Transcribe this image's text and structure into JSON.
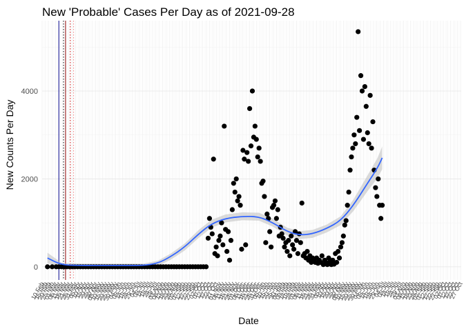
{
  "chart_data": {
    "type": "scatter",
    "title": "New 'Probable' Cases Per Day as of 2021-09-28",
    "xlabel": "Date",
    "ylabel": "New Counts Per Day",
    "x_range": [
      "2020-02-10",
      "2021-10-28"
    ],
    "ylim": [
      -300,
      5600
    ],
    "y_ticks": [
      0,
      2000,
      4000
    ],
    "x_tick_step_days": 5,
    "x_tick_label_angle": -60,
    "grid": true,
    "vlines": [
      {
        "date": "2020-03-06",
        "color": "#00008b",
        "style": "solid"
      },
      {
        "date": "2020-03-13",
        "color": "#000000",
        "style": "dotted"
      },
      {
        "date": "2020-03-16",
        "color": "#8b0000",
        "style": "solid"
      },
      {
        "date": "2020-03-23",
        "color": "#cd0000",
        "style": "dotted"
      },
      {
        "date": "2020-03-28",
        "color": "#f08080",
        "style": "dotted"
      }
    ],
    "point_color": "#000000",
    "smooth_color": "#3366ff",
    "ribbon_color": "#bebebe",
    "points": [
      [
        "2020-02-18",
        0
      ],
      [
        "2020-02-25",
        0
      ],
      [
        "2020-03-02",
        0
      ],
      [
        "2020-03-06",
        0
      ],
      [
        "2020-03-10",
        0
      ],
      [
        "2020-03-14",
        0
      ],
      [
        "2020-03-18",
        0
      ],
      [
        "2020-03-22",
        0
      ],
      [
        "2020-03-26",
        0
      ],
      [
        "2020-03-30",
        0
      ],
      [
        "2020-04-03",
        0
      ],
      [
        "2020-04-07",
        0
      ],
      [
        "2020-04-11",
        0
      ],
      [
        "2020-04-15",
        0
      ],
      [
        "2020-04-19",
        0
      ],
      [
        "2020-04-23",
        0
      ],
      [
        "2020-04-27",
        0
      ],
      [
        "2020-05-01",
        0
      ],
      [
        "2020-05-05",
        0
      ],
      [
        "2020-05-09",
        0
      ],
      [
        "2020-05-13",
        0
      ],
      [
        "2020-05-17",
        0
      ],
      [
        "2020-05-21",
        0
      ],
      [
        "2020-05-25",
        0
      ],
      [
        "2020-05-29",
        0
      ],
      [
        "2020-06-02",
        0
      ],
      [
        "2020-06-06",
        0
      ],
      [
        "2020-06-10",
        0
      ],
      [
        "2020-06-14",
        0
      ],
      [
        "2020-06-18",
        0
      ],
      [
        "2020-06-22",
        0
      ],
      [
        "2020-06-26",
        0
      ],
      [
        "2020-06-30",
        0
      ],
      [
        "2020-07-04",
        0
      ],
      [
        "2020-07-08",
        0
      ],
      [
        "2020-07-12",
        0
      ],
      [
        "2020-07-16",
        0
      ],
      [
        "2020-07-20",
        0
      ],
      [
        "2020-07-24",
        0
      ],
      [
        "2020-07-28",
        0
      ],
      [
        "2020-08-01",
        0
      ],
      [
        "2020-08-05",
        0
      ],
      [
        "2020-08-09",
        0
      ],
      [
        "2020-08-13",
        0
      ],
      [
        "2020-08-17",
        0
      ],
      [
        "2020-08-21",
        0
      ],
      [
        "2020-08-25",
        0
      ],
      [
        "2020-08-29",
        0
      ],
      [
        "2020-09-02",
        0
      ],
      [
        "2020-09-06",
        0
      ],
      [
        "2020-09-10",
        0
      ],
      [
        "2020-09-14",
        0
      ],
      [
        "2020-09-18",
        0
      ],
      [
        "2020-09-22",
        0
      ],
      [
        "2020-09-26",
        0
      ],
      [
        "2020-09-30",
        0
      ],
      [
        "2020-10-04",
        0
      ],
      [
        "2020-10-08",
        0
      ],
      [
        "2020-10-12",
        0
      ],
      [
        "2020-10-15",
        650
      ],
      [
        "2020-10-17",
        1100
      ],
      [
        "2020-10-19",
        900
      ],
      [
        "2020-10-21",
        750
      ],
      [
        "2020-10-23",
        2450
      ],
      [
        "2020-10-25",
        300
      ],
      [
        "2020-10-27",
        450
      ],
      [
        "2020-10-29",
        250
      ],
      [
        "2020-10-31",
        600
      ],
      [
        "2020-11-02",
        700
      ],
      [
        "2020-11-04",
        1000
      ],
      [
        "2020-11-06",
        500
      ],
      [
        "2020-11-08",
        3200
      ],
      [
        "2020-11-10",
        850
      ],
      [
        "2020-11-12",
        350
      ],
      [
        "2020-11-14",
        800
      ],
      [
        "2020-11-16",
        150
      ],
      [
        "2020-11-18",
        600
      ],
      [
        "2020-11-20",
        1300
      ],
      [
        "2020-11-22",
        1900
      ],
      [
        "2020-11-24",
        1700
      ],
      [
        "2020-11-26",
        2000
      ],
      [
        "2020-11-28",
        1500
      ],
      [
        "2020-11-30",
        1600
      ],
      [
        "2020-12-02",
        1400
      ],
      [
        "2020-12-04",
        400
      ],
      [
        "2020-12-06",
        2650
      ],
      [
        "2020-12-08",
        2450
      ],
      [
        "2020-12-10",
        500
      ],
      [
        "2020-12-12",
        2600
      ],
      [
        "2020-12-14",
        2400
      ],
      [
        "2020-12-16",
        3600
      ],
      [
        "2020-12-18",
        2750
      ],
      [
        "2020-12-20",
        4000
      ],
      [
        "2020-12-22",
        2950
      ],
      [
        "2020-12-24",
        3200
      ],
      [
        "2020-12-26",
        2900
      ],
      [
        "2020-12-28",
        2500
      ],
      [
        "2020-12-30",
        2700
      ],
      [
        "2021-01-01",
        2400
      ],
      [
        "2021-01-03",
        1900
      ],
      [
        "2021-01-05",
        1950
      ],
      [
        "2021-01-07",
        1600
      ],
      [
        "2021-01-09",
        550
      ],
      [
        "2021-01-11",
        1200
      ],
      [
        "2021-01-13",
        1100
      ],
      [
        "2021-01-15",
        800
      ],
      [
        "2021-01-17",
        450
      ],
      [
        "2021-01-19",
        1350
      ],
      [
        "2021-01-21",
        1400
      ],
      [
        "2021-01-23",
        1500
      ],
      [
        "2021-01-25",
        1100
      ],
      [
        "2021-01-27",
        1300
      ],
      [
        "2021-01-29",
        700
      ],
      [
        "2021-01-31",
        900
      ],
      [
        "2021-02-02",
        750
      ],
      [
        "2021-02-04",
        650
      ],
      [
        "2021-02-06",
        450
      ],
      [
        "2021-02-08",
        550
      ],
      [
        "2021-02-10",
        350
      ],
      [
        "2021-02-12",
        600
      ],
      [
        "2021-02-14",
        250
      ],
      [
        "2021-02-16",
        700
      ],
      [
        "2021-02-18",
        500
      ],
      [
        "2021-02-20",
        400
      ],
      [
        "2021-02-22",
        800
      ],
      [
        "2021-02-24",
        600
      ],
      [
        "2021-02-26",
        300
      ],
      [
        "2021-02-28",
        750
      ],
      [
        "2021-03-02",
        550
      ],
      [
        "2021-03-04",
        1450
      ],
      [
        "2021-03-06",
        250
      ],
      [
        "2021-03-08",
        300
      ],
      [
        "2021-03-10",
        200
      ],
      [
        "2021-03-12",
        350
      ],
      [
        "2021-03-14",
        150
      ],
      [
        "2021-03-16",
        250
      ],
      [
        "2021-03-18",
        100
      ],
      [
        "2021-03-20",
        200
      ],
      [
        "2021-03-22",
        150
      ],
      [
        "2021-03-24",
        100
      ],
      [
        "2021-03-26",
        200
      ],
      [
        "2021-03-28",
        80
      ],
      [
        "2021-03-30",
        150
      ],
      [
        "2021-04-01",
        100
      ],
      [
        "2021-04-03",
        250
      ],
      [
        "2021-04-05",
        50
      ],
      [
        "2021-04-07",
        150
      ],
      [
        "2021-04-09",
        100
      ],
      [
        "2021-04-11",
        50
      ],
      [
        "2021-04-13",
        200
      ],
      [
        "2021-04-15",
        120
      ],
      [
        "2021-04-17",
        50
      ],
      [
        "2021-04-19",
        150
      ],
      [
        "2021-04-21",
        60
      ],
      [
        "2021-04-23",
        300
      ],
      [
        "2021-04-25",
        100
      ],
      [
        "2021-04-27",
        350
      ],
      [
        "2021-04-29",
        200
      ],
      [
        "2021-05-01",
        450
      ],
      [
        "2021-05-03",
        550
      ],
      [
        "2021-05-05",
        700
      ],
      [
        "2021-05-07",
        950
      ],
      [
        "2021-05-09",
        1050
      ],
      [
        "2021-05-11",
        1400
      ],
      [
        "2021-05-13",
        1700
      ],
      [
        "2021-05-15",
        2200
      ],
      [
        "2021-05-17",
        2500
      ],
      [
        "2021-05-19",
        2700
      ],
      [
        "2021-05-21",
        3000
      ],
      [
        "2021-05-23",
        2800
      ],
      [
        "2021-05-25",
        3400
      ],
      [
        "2021-05-27",
        5350
      ],
      [
        "2021-05-29",
        3100
      ],
      [
        "2021-05-31",
        4350
      ],
      [
        "2021-06-02",
        4000
      ],
      [
        "2021-06-04",
        2900
      ],
      [
        "2021-06-06",
        4100
      ],
      [
        "2021-06-08",
        3650
      ],
      [
        "2021-06-10",
        3050
      ],
      [
        "2021-06-12",
        2800
      ],
      [
        "2021-06-14",
        3900
      ],
      [
        "2021-06-16",
        2700
      ],
      [
        "2021-06-18",
        3300
      ],
      [
        "2021-06-20",
        2200
      ],
      [
        "2021-06-22",
        1800
      ],
      [
        "2021-06-24",
        1600
      ],
      [
        "2021-06-26",
        2000
      ],
      [
        "2021-06-28",
        1400
      ],
      [
        "2021-06-30",
        1100
      ],
      [
        "2021-07-02",
        1400
      ]
    ],
    "smooth": [
      [
        "2020-02-18",
        200,
        80,
        320
      ],
      [
        "2020-03-10",
        40,
        0,
        90
      ],
      [
        "2020-04-10",
        30,
        0,
        70
      ],
      [
        "2020-05-10",
        30,
        0,
        70
      ],
      [
        "2020-06-10",
        30,
        0,
        70
      ],
      [
        "2020-07-10",
        30,
        0,
        70
      ],
      [
        "2020-08-01",
        80,
        20,
        140
      ],
      [
        "2020-08-20",
        230,
        160,
        300
      ],
      [
        "2020-09-10",
        450,
        370,
        530
      ],
      [
        "2020-10-01",
        750,
        660,
        840
      ],
      [
        "2020-10-20",
        980,
        890,
        1070
      ],
      [
        "2020-11-10",
        1100,
        1010,
        1190
      ],
      [
        "2020-12-05",
        1150,
        1060,
        1240
      ],
      [
        "2020-12-30",
        1140,
        1050,
        1230
      ],
      [
        "2021-01-20",
        1000,
        910,
        1090
      ],
      [
        "2021-02-10",
        800,
        710,
        890
      ],
      [
        "2021-03-01",
        720,
        630,
        810
      ],
      [
        "2021-03-20",
        750,
        660,
        840
      ],
      [
        "2021-04-10",
        870,
        780,
        960
      ],
      [
        "2021-05-01",
        1050,
        950,
        1150
      ],
      [
        "2021-05-20",
        1400,
        1270,
        1530
      ],
      [
        "2021-06-10",
        1900,
        1720,
        2080
      ],
      [
        "2021-06-25",
        2250,
        2020,
        2480
      ],
      [
        "2021-07-02",
        2480,
        2220,
        2740
      ]
    ],
    "x_tick_labels": [
      "10 Feb",
      "15 Feb",
      "20 Feb",
      "25 Feb",
      "01 Mar",
      "06 Mar",
      "11 Mar",
      "16 Mar",
      "21 Mar",
      "26 Mar",
      "31 Mar",
      "05 Apr",
      "10 Apr",
      "15 Apr",
      "20 Apr",
      "25 Apr",
      "30 Apr",
      "05 May",
      "10 May",
      "15 May",
      "20 May",
      "25 May",
      "30 May",
      "04 Jun",
      "09 Jun",
      "14 Jun",
      "19 Jun",
      "24 Jun",
      "29 Jun",
      "04 Jul",
      "09 Jul",
      "14 Jul",
      "19 Jul",
      "24 Jul",
      "29 Jul",
      "03 Aug",
      "08 Aug",
      "13 Aug",
      "18 Aug",
      "23 Aug",
      "28 Aug",
      "02 Sep",
      "07 Sep",
      "12 Sep",
      "17 Sep",
      "22 Sep",
      "27 Sep",
      "02 Oct",
      "07 Oct",
      "12 Oct",
      "17 Oct",
      "22 Oct",
      "27 Oct",
      "01 Nov",
      "06 Nov",
      "11 Nov",
      "16 Nov",
      "21 Nov",
      "26 Nov",
      "01 Dec",
      "06 Dec",
      "11 Dec",
      "16 Dec",
      "21 Dec",
      "26 Dec",
      "31 Dec",
      "05 Jan",
      "10 Jan",
      "15 Jan",
      "20 Jan",
      "25 Jan",
      "30 Jan",
      "04 Feb",
      "09 Feb",
      "14 Feb",
      "19 Feb",
      "24 Feb",
      "01 Mar",
      "06 Mar",
      "11 Mar",
      "16 Mar",
      "21 Mar",
      "26 Mar",
      "31 Mar",
      "05 Apr",
      "10 Apr",
      "15 Apr",
      "20 Apr",
      "25 Apr",
      "30 Apr",
      "05 May",
      "10 May",
      "15 May",
      "20 May",
      "25 May",
      "30 May",
      "04 Jun",
      "09 Jun",
      "14 Jun",
      "19 Jun",
      "24 Jun",
      "29 Jun",
      "04 Jul",
      "09 Jul",
      "14 Jul",
      "19 Jul",
      "24 Jul",
      "29 Jul",
      "03 Aug",
      "08 Aug",
      "13 Aug",
      "18 Aug",
      "23 Aug",
      "28 Aug",
      "02 Sep",
      "07 Sep",
      "12 Sep",
      "17 Sep",
      "22 Sep",
      "27 Sep",
      "02 Oct",
      "07 Oct",
      "12 Oct",
      "17 Oct",
      "22 Oct",
      "27 Oct"
    ]
  }
}
